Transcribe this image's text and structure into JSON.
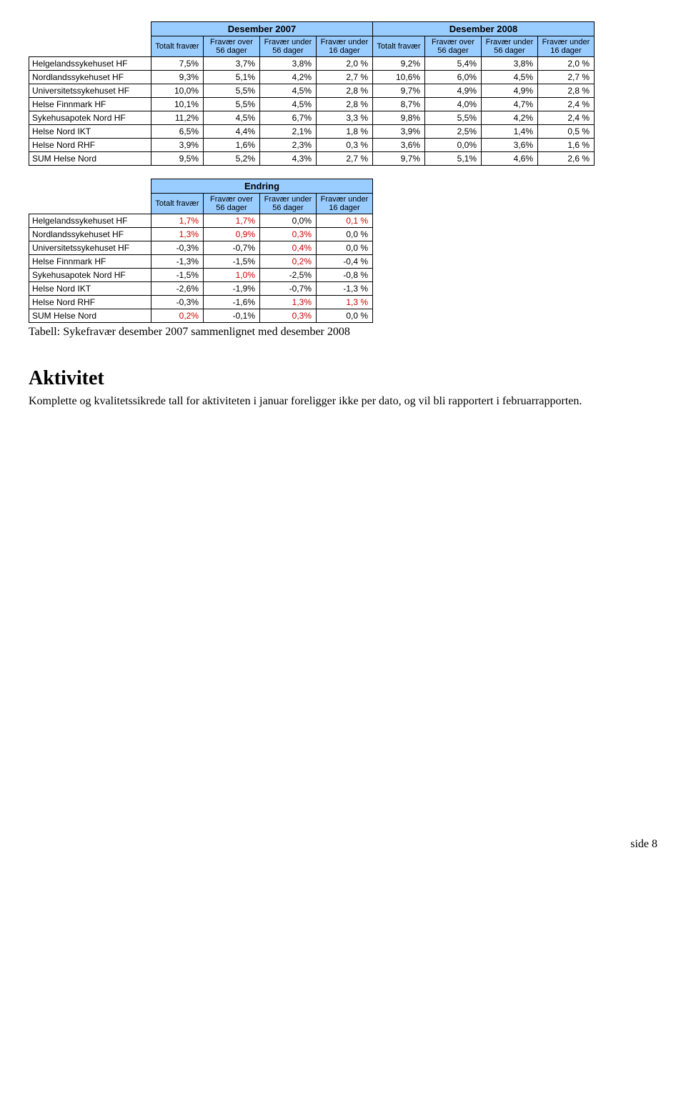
{
  "table1": {
    "group_headers": [
      "Desember 2007",
      "Desember 2008"
    ],
    "col_headers": [
      "Totalt fravær",
      "Fravær over 56 dager",
      "Fravær under 56 dager",
      "Fravær under 16 dager",
      "Totalt fravær",
      "Fravær over 56 dager",
      "Fravær under 56 dager",
      "Fravær under 16 dager"
    ],
    "rows": [
      {
        "label": "Helgelandssykehuset HF",
        "vals": [
          "7,5%",
          "3,7%",
          "3,8%",
          "2,0 %",
          "9,2%",
          "5,4%",
          "3,8%",
          "2,0 %"
        ]
      },
      {
        "label": "Nordlandssykehuset HF",
        "vals": [
          "9,3%",
          "5,1%",
          "4,2%",
          "2,7 %",
          "10,6%",
          "6,0%",
          "4,5%",
          "2,7 %"
        ]
      },
      {
        "label": "Universitetssykehuset HF",
        "vals": [
          "10,0%",
          "5,5%",
          "4,5%",
          "2,8 %",
          "9,7%",
          "4,9%",
          "4,9%",
          "2,8 %"
        ]
      },
      {
        "label": "Helse Finnmark HF",
        "vals": [
          "10,1%",
          "5,5%",
          "4,5%",
          "2,8 %",
          "8,7%",
          "4,0%",
          "4,7%",
          "2,4 %"
        ]
      },
      {
        "label": "Sykehusapotek Nord HF",
        "vals": [
          "11,2%",
          "4,5%",
          "6,7%",
          "3,3 %",
          "9,8%",
          "5,5%",
          "4,2%",
          "2,4 %"
        ]
      },
      {
        "label": "Helse Nord IKT",
        "vals": [
          "6,5%",
          "4,4%",
          "2,1%",
          "1,8 %",
          "3,9%",
          "2,5%",
          "1,4%",
          "0,5 %"
        ]
      },
      {
        "label": "Helse Nord RHF",
        "vals": [
          "3,9%",
          "1,6%",
          "2,3%",
          "0,3 %",
          "3,6%",
          "0,0%",
          "3,6%",
          "1,6 %"
        ]
      },
      {
        "label": "SUM Helse Nord",
        "vals": [
          "9,5%",
          "5,2%",
          "4,3%",
          "2,7 %",
          "9,7%",
          "5,1%",
          "4,6%",
          "2,6 %"
        ]
      }
    ]
  },
  "table2": {
    "group_header": "Endring",
    "col_headers": [
      "Totalt fravær",
      "Fravær over 56 dager",
      "Fravær under 56 dager",
      "Fravær under 16 dager"
    ],
    "rows": [
      {
        "label": "Helgelandssykehuset HF",
        "vals": [
          {
            "t": "1,7%",
            "red": true
          },
          {
            "t": "1,7%",
            "red": true
          },
          {
            "t": "0,0%",
            "red": false
          },
          {
            "t": "0,1 %",
            "red": true
          }
        ]
      },
      {
        "label": "Nordlandssykehuset HF",
        "vals": [
          {
            "t": "1,3%",
            "red": true
          },
          {
            "t": "0,9%",
            "red": true
          },
          {
            "t": "0,3%",
            "red": true
          },
          {
            "t": "0,0 %",
            "red": false
          }
        ]
      },
      {
        "label": "Universitetssykehuset HF",
        "vals": [
          {
            "t": "-0,3%",
            "red": false
          },
          {
            "t": "-0,7%",
            "red": false
          },
          {
            "t": "0,4%",
            "red": true
          },
          {
            "t": "0,0 %",
            "red": false
          }
        ]
      },
      {
        "label": "Helse Finnmark HF",
        "vals": [
          {
            "t": "-1,3%",
            "red": false
          },
          {
            "t": "-1,5%",
            "red": false
          },
          {
            "t": "0,2%",
            "red": true
          },
          {
            "t": "-0,4 %",
            "red": false
          }
        ]
      },
      {
        "label": "Sykehusapotek Nord HF",
        "vals": [
          {
            "t": "-1,5%",
            "red": false
          },
          {
            "t": "1,0%",
            "red": true
          },
          {
            "t": "-2,5%",
            "red": false
          },
          {
            "t": "-0,8 %",
            "red": false
          }
        ]
      },
      {
        "label": "Helse Nord IKT",
        "vals": [
          {
            "t": "-2,6%",
            "red": false
          },
          {
            "t": "-1,9%",
            "red": false
          },
          {
            "t": "-0,7%",
            "red": false
          },
          {
            "t": "-1,3 %",
            "red": false
          }
        ]
      },
      {
        "label": "Helse Nord RHF",
        "vals": [
          {
            "t": "-0,3%",
            "red": false
          },
          {
            "t": "-1,6%",
            "red": false
          },
          {
            "t": "1,3%",
            "red": true
          },
          {
            "t": "1,3 %",
            "red": true
          }
        ]
      },
      {
        "label": "SUM Helse Nord",
        "vals": [
          {
            "t": "0,2%",
            "red": true
          },
          {
            "t": "-0,1%",
            "red": false
          },
          {
            "t": "0,3%",
            "red": true
          },
          {
            "t": "0,0 %",
            "red": false
          }
        ]
      }
    ]
  },
  "caption": "Tabell: Sykefravær desember 2007 sammenlignet med desember 2008",
  "section_title": "Aktivitet",
  "body_text": "Komplette og kvalitetssikrede tall for aktiviteten i januar foreligger ikke per dato, og vil bli rapportert i februarrapporten.",
  "footer": "side 8",
  "colors": {
    "header_blue": "#99ccff",
    "red_text": "#cc0000",
    "border": "#000000",
    "background": "#ffffff"
  }
}
